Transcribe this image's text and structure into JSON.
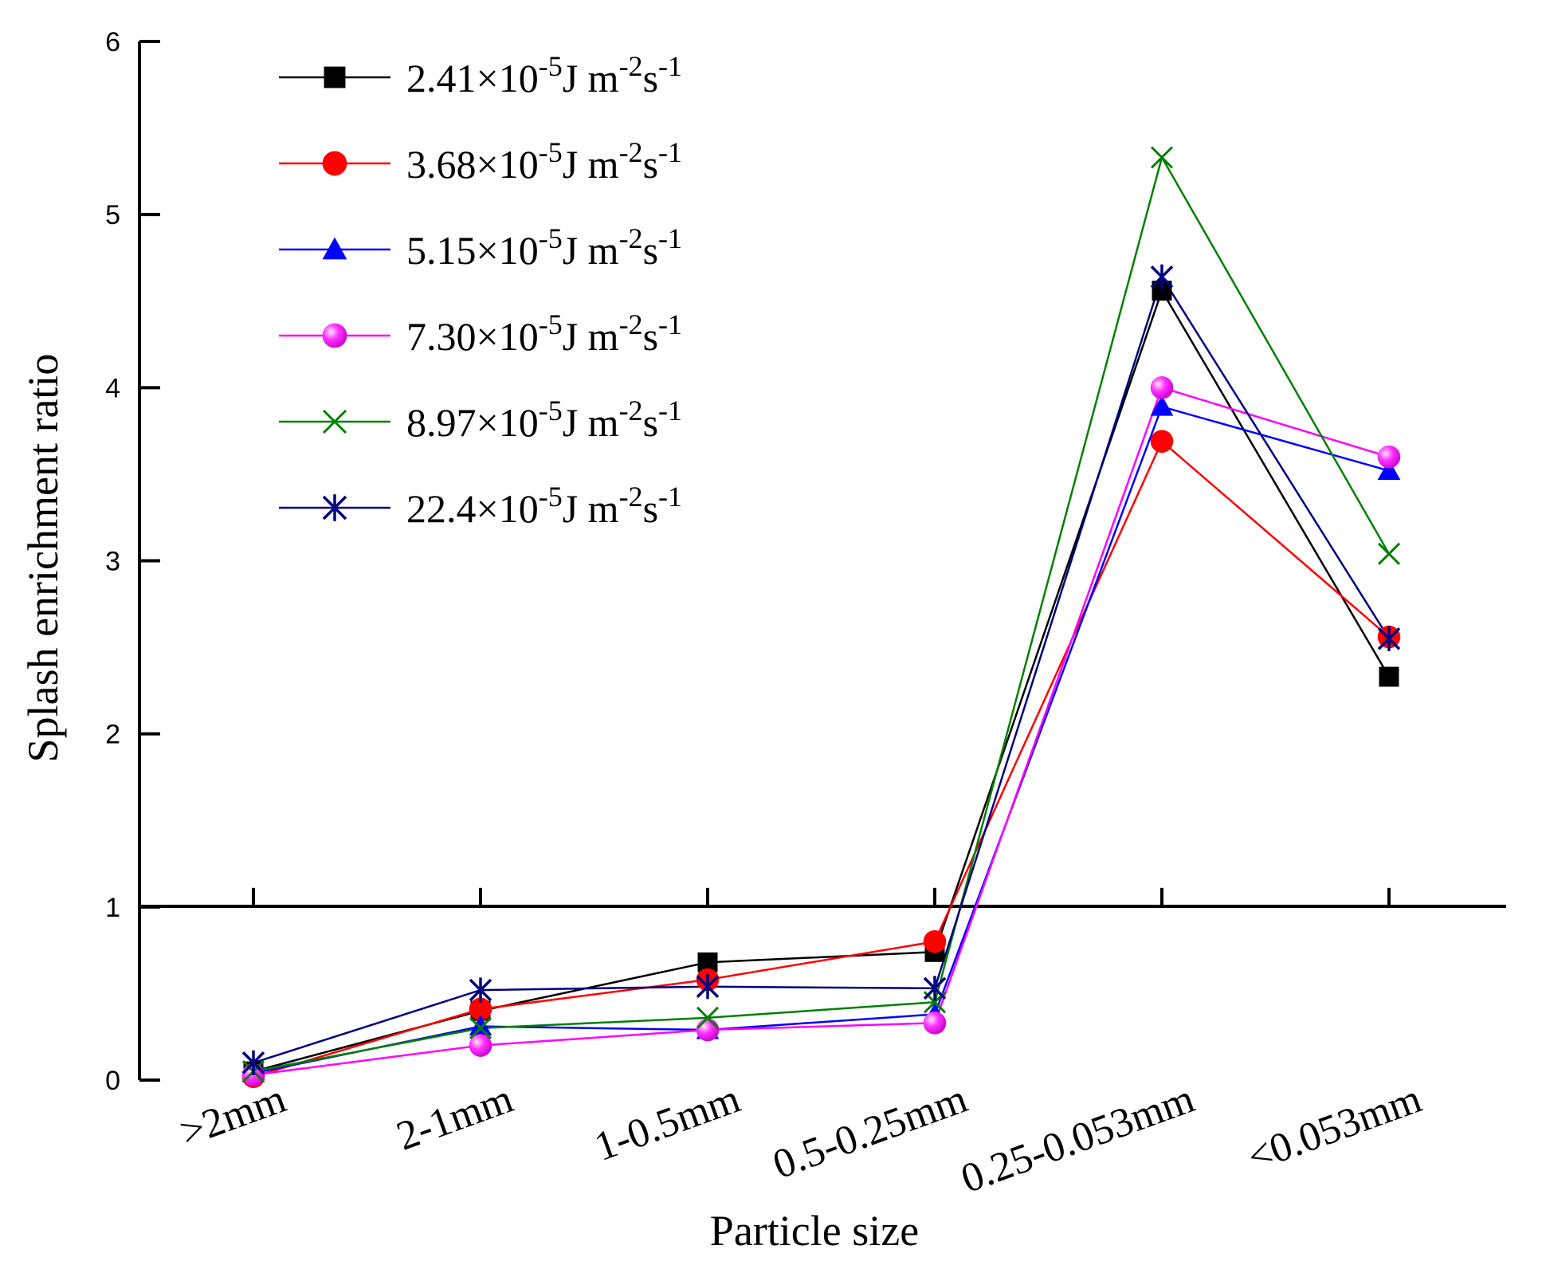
{
  "chart_data": {
    "type": "line",
    "title": "",
    "xlabel": "Particle size",
    "ylabel": "Splash enrichment ratio",
    "ylim": [
      0,
      6
    ],
    "yticks": [
      0,
      1,
      2,
      3,
      4,
      5,
      6
    ],
    "reference_line": 1,
    "categories": [
      ">2mm",
      "2-1mm",
      "1-0.5mm",
      "0.5-0.25mm",
      "0.25-0.053mm",
      "<0.053mm"
    ],
    "category_display": [
      ">2mm",
      "2-1mm",
      "1-0.5mm",
      "0.5-0.25mm",
      "0.25-0.053mm",
      "<0.053mm"
    ],
    "legend_position": "top-left",
    "series": [
      {
        "name": "2.41×10-5J m-2s-1",
        "mantissa": "2.41×10",
        "exp": "-5",
        "unit": "J m",
        "unit_exp": "-2",
        "unit2": "s",
        "unit2_exp": "-1",
        "color": "#000000",
        "marker": "square",
        "values": [
          0.05,
          0.4,
          0.68,
          0.74,
          4.56,
          2.33
        ]
      },
      {
        "name": "3.68×10-5J m-2s-1",
        "mantissa": "3.68×10",
        "exp": "-5",
        "unit": "J m",
        "unit_exp": "-2",
        "unit2": "s",
        "unit2_exp": "-1",
        "color": "#ff0000",
        "marker": "circle",
        "values": [
          0.02,
          0.41,
          0.58,
          0.8,
          3.69,
          2.56
        ]
      },
      {
        "name": "5.15×10-5J m-2s-1",
        "mantissa": "5.15×10",
        "exp": "-5",
        "unit": "J m",
        "unit_exp": "-2",
        "unit2": "s",
        "unit2_exp": "-1",
        "color": "#0000ff",
        "marker": "triangle",
        "values": [
          0.04,
          0.31,
          0.29,
          0.38,
          3.89,
          3.52
        ]
      },
      {
        "name": "7.30×10-5J m-2s-1",
        "mantissa": "7.30×10",
        "exp": "-5",
        "unit": "J m",
        "unit_exp": "-2",
        "unit2": "s",
        "unit2_exp": "-1",
        "color": "#ff00ff",
        "marker": "sphere",
        "values": [
          0.03,
          0.2,
          0.29,
          0.33,
          4.0,
          3.6
        ]
      },
      {
        "name": "8.97×10-5J m-2s-1",
        "mantissa": "8.97×10",
        "exp": "-5",
        "unit": "J m",
        "unit_exp": "-2",
        "unit2": "s",
        "unit2_exp": "-1",
        "color": "#008000",
        "marker": "x",
        "values": [
          0.05,
          0.3,
          0.36,
          0.45,
          5.33,
          3.04
        ]
      },
      {
        "name": "22.4×10-5J m-2s-1",
        "mantissa": "22.4×10",
        "exp": "-5",
        "unit": "J m",
        "unit_exp": "-2",
        "unit2": "s",
        "unit2_exp": "-1",
        "color": "#000080",
        "marker": "star",
        "values": [
          0.1,
          0.52,
          0.54,
          0.53,
          4.64,
          2.55
        ]
      }
    ]
  }
}
